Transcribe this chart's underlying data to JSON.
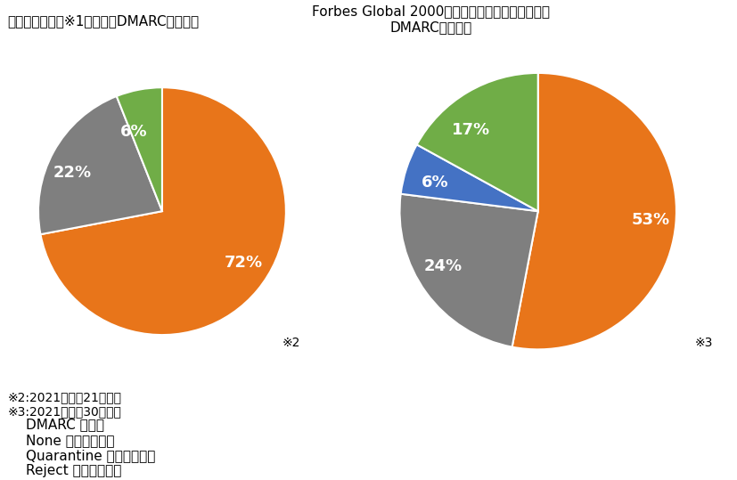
{
  "title_left": "日本の主要銀行※1におけるDMARC導入状況",
  "title_right": "Forbes Global 2000のうち金融サービスにおける\nDMARC導入状況",
  "pie1": {
    "values": [
      72,
      22,
      6
    ],
    "labels": [
      "72%",
      "22%",
      "6%"
    ],
    "colors": [
      "#E8751A",
      "#7F7F7F",
      "#70AD47"
    ],
    "startangle": 90,
    "note": "※2"
  },
  "pie2": {
    "values": [
      53,
      24,
      6,
      17
    ],
    "labels": [
      "53%",
      "24%",
      "6%",
      "17%"
    ],
    "colors": [
      "#E8751A",
      "#7F7F7F",
      "#4472C4",
      "#70AD47"
    ],
    "startangle": 90,
    "note": "※3"
  },
  "footnote1": "※2:2021年４月21日時点",
  "footnote2": "※3:2021年４月30日時点",
  "legend_items": [
    {
      "label": "DMARC 未導入",
      "color": "#E8751A"
    },
    {
      "label": "None ポリシー導入",
      "color": "#7F7F7F"
    },
    {
      "label": "Quarantine ポリシー導入",
      "color": "#4472C4"
    },
    {
      "label": "Reject ポリシー導入",
      "color": "#70AD47"
    }
  ],
  "label_fontsize": 13,
  "title_fontsize": 11,
  "legend_fontsize": 11,
  "footnote_fontsize": 10,
  "note_fontsize": 10,
  "background_color": "#FFFFFF"
}
